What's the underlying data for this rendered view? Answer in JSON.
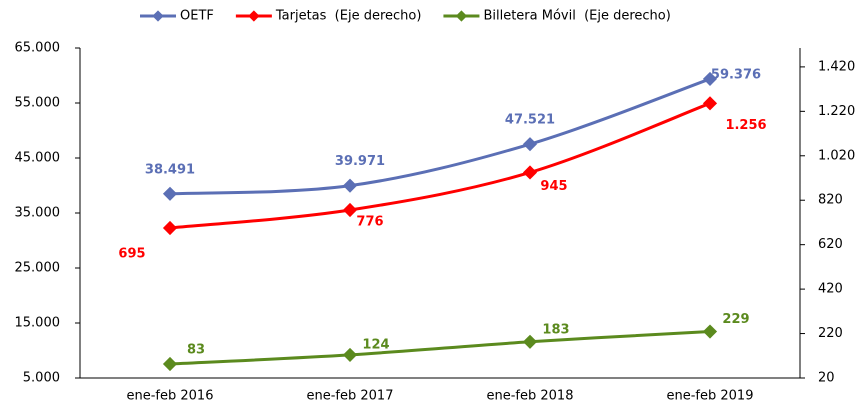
{
  "chart_data": {
    "type": "line",
    "categories": [
      "ene-feb 2016",
      "ene-feb 2017",
      "ene-feb 2018",
      "ene-feb 2019"
    ],
    "series": [
      {
        "name": "OETF",
        "color": "#5b6fb5",
        "values": [
          38491,
          39971,
          47521,
          59376
        ],
        "value_labels": [
          "38.491",
          "39.971",
          "47.521",
          "59.376"
        ]
      },
      {
        "name": "Tarjetas  (Eje derecho)",
        "color": "#ff0000",
        "axis": "y2",
        "values": [
          695,
          776,
          945,
          1256
        ],
        "value_labels": [
          "695",
          "776",
          "945",
          "1.256"
        ]
      },
      {
        "name": "Billetera Móvil  (Eje derecho)",
        "color": "#5b8a1e",
        "axis": "y2",
        "values": [
          83,
          124,
          183,
          229
        ]
      }
    ],
    "ylim": [
      5000,
      65000
    ],
    "yticks": [
      {
        "value": 5000,
        "label": "5.000"
      },
      {
        "value": 15000,
        "label": "15.000"
      },
      {
        "value": 25000,
        "label": "25.000"
      },
      {
        "value": 35000,
        "label": "35.000"
      },
      {
        "value": 45000,
        "label": "45.000"
      },
      {
        "value": 55000,
        "label": "55.000"
      },
      {
        "value": 65000,
        "label": "65.000"
      }
    ],
    "y2lim": [
      20,
      1505
    ],
    "y2ticks": [
      20,
      220,
      420,
      620,
      820,
      {
        "value": 1020,
        "label": "1.020"
      },
      {
        "value": 1220,
        "label": "1.220"
      },
      {
        "value": 1420,
        "label": "1.420"
      }
    ],
    "legend": "top"
  }
}
